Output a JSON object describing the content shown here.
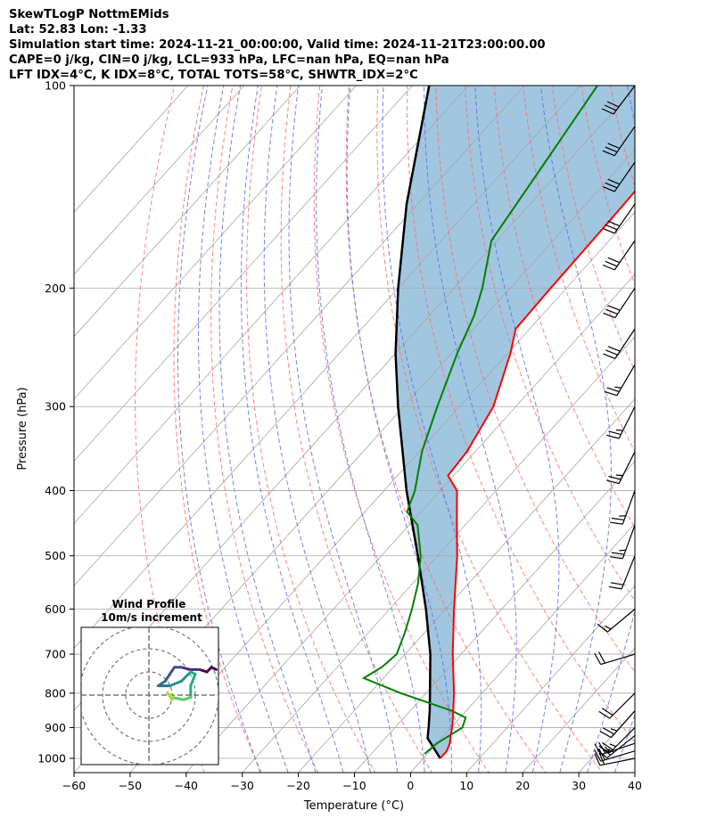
{
  "header": {
    "line1": "SkewTLogP NottmEMids",
    "line2": "Lat: 52.83   Lon: -1.33",
    "line3": "Simulation start time: 2024-11-21_00:00:00, Valid time: 2024-11-21T23:00:00.00",
    "line4": "CAPE=0 j/kg, CIN=0 j/kg, LCL=933 hPa, LFC=nan hPa, EQ=nan hPa",
    "line5": "LFT IDX=4°C, K IDX=8°C, TOTAL TOTS=58°C, SHWTR_IDX=2°C"
  },
  "chart_data": {
    "type": "skew-t",
    "xlabel": "Temperature (°C)",
    "ylabel": "Pressure (hPa)",
    "xlim": [
      -60,
      40
    ],
    "ylim": [
      1050,
      100
    ],
    "y_scale": "log",
    "grid": true,
    "x_ticks": [
      -60,
      -50,
      -40,
      -30,
      -20,
      -10,
      0,
      10,
      20,
      30,
      40
    ],
    "y_ticks": [
      1000,
      900,
      800,
      700,
      600,
      500,
      400,
      300,
      200,
      100
    ],
    "x_tick_labels": [
      "−60",
      "−50",
      "−40",
      "−30",
      "−20",
      "−10",
      "0",
      "10",
      "20",
      "30",
      "40"
    ],
    "y_tick_labels": [
      "1000",
      "900",
      "800",
      "700",
      "600",
      "500",
      "400",
      "300",
      "200",
      "100"
    ],
    "colors": {
      "temperature": "#ff0000",
      "dewpoint": "#008000",
      "parcel": "#000000",
      "shading": "#a1c6e0",
      "dry_adiabats": "#ff6b6b",
      "moist_adiabats": "#5a6cf0",
      "isotherms": "#a6a6a6"
    },
    "temperature": [
      {
        "p": 1000,
        "t": 3.0
      },
      {
        "p": 975,
        "t": 3.0
      },
      {
        "p": 950,
        "t": 2.3
      },
      {
        "p": 925,
        "t": 1.2
      },
      {
        "p": 900,
        "t": 0.2
      },
      {
        "p": 850,
        "t": -2.3
      },
      {
        "p": 800,
        "t": -5.0
      },
      {
        "p": 700,
        "t": -11.5
      },
      {
        "p": 600,
        "t": -18.5
      },
      {
        "p": 500,
        "t": -26.5
      },
      {
        "p": 450,
        "t": -31.5
      },
      {
        "p": 400,
        "t": -37.0
      },
      {
        "p": 380,
        "t": -41.0
      },
      {
        "p": 350,
        "t": -41.5
      },
      {
        "p": 300,
        "t": -44.0
      },
      {
        "p": 250,
        "t": -49.5
      },
      {
        "p": 230,
        "t": -52.5
      },
      {
        "p": 200,
        "t": -52.8
      },
      {
        "p": 170,
        "t": -53.0
      },
      {
        "p": 150,
        "t": -53.2
      },
      {
        "p": 120,
        "t": -53.8
      },
      {
        "p": 100,
        "t": -55.0
      }
    ],
    "dewpoint": [
      {
        "p": 985,
        "t": -0.5
      },
      {
        "p": 950,
        "t": 0.0
      },
      {
        "p": 900,
        "t": 2.0
      },
      {
        "p": 870,
        "t": 1.0
      },
      {
        "p": 850,
        "t": -2.5
      },
      {
        "p": 800,
        "t": -14.5
      },
      {
        "p": 760,
        "t": -23.5
      },
      {
        "p": 730,
        "t": -22.0
      },
      {
        "p": 700,
        "t": -21.5
      },
      {
        "p": 650,
        "t": -23.5
      },
      {
        "p": 600,
        "t": -26.0
      },
      {
        "p": 550,
        "t": -29.0
      },
      {
        "p": 500,
        "t": -33.0
      },
      {
        "p": 450,
        "t": -38.5
      },
      {
        "p": 430,
        "t": -42.5
      },
      {
        "p": 400,
        "t": -44.5
      },
      {
        "p": 350,
        "t": -49.5
      },
      {
        "p": 300,
        "t": -54.0
      },
      {
        "p": 250,
        "t": -59.0
      },
      {
        "p": 220,
        "t": -62.0
      },
      {
        "p": 200,
        "t": -65.0
      },
      {
        "p": 170,
        "t": -71.0
      },
      {
        "p": 130,
        "t": -74.0
      },
      {
        "p": 100,
        "t": -77.0
      }
    ],
    "parcel": [
      {
        "p": 1000,
        "t": 3.0
      },
      {
        "p": 933,
        "t": -2.5
      },
      {
        "p": 900,
        "t": -4.0
      },
      {
        "p": 850,
        "t": -6.5
      },
      {
        "p": 800,
        "t": -9.3
      },
      {
        "p": 700,
        "t": -15.5
      },
      {
        "p": 600,
        "t": -23.5
      },
      {
        "p": 500,
        "t": -33.5
      },
      {
        "p": 400,
        "t": -46.0
      },
      {
        "p": 300,
        "t": -61.0
      },
      {
        "p": 250,
        "t": -70.0
      },
      {
        "p": 200,
        "t": -80.0
      },
      {
        "p": 150,
        "t": -92.0
      },
      {
        "p": 100,
        "t": -107.0
      }
    ],
    "wind_barbs": [
      {
        "p": 1000,
        "u": 10.0,
        "v": 2.0
      },
      {
        "p": 975,
        "u": 10.0,
        "v": 3.0
      },
      {
        "p": 950,
        "u": 12.0,
        "v": 4.0
      },
      {
        "p": 925,
        "u": 10.0,
        "v": 8.0
      },
      {
        "p": 900,
        "u": 9.0,
        "v": 9.0
      },
      {
        "p": 850,
        "u": 8.0,
        "v": 9.0
      },
      {
        "p": 800,
        "u": 8.0,
        "v": 8.0
      },
      {
        "p": 700,
        "u": 10.0,
        "v": 3.0
      },
      {
        "p": 600,
        "u": 6.0,
        "v": 5.0
      },
      {
        "p": 500,
        "u": 4.0,
        "v": 10.0
      },
      {
        "p": 450,
        "u": 4.0,
        "v": 11.0
      },
      {
        "p": 400,
        "u": 4.0,
        "v": 11.0
      },
      {
        "p": 350,
        "u": 6.0,
        "v": 12.0
      },
      {
        "p": 300,
        "u": 6.0,
        "v": 12.0
      },
      {
        "p": 260,
        "u": 7.0,
        "v": 12.0
      },
      {
        "p": 230,
        "u": 8.0,
        "v": 12.0
      },
      {
        "p": 200,
        "u": 8.0,
        "v": 12.0
      },
      {
        "p": 170,
        "u": 9.0,
        "v": 13.0
      },
      {
        "p": 150,
        "u": 9.0,
        "v": 13.0
      },
      {
        "p": 130,
        "u": 9.0,
        "v": 13.0
      },
      {
        "p": 115,
        "u": 9.0,
        "v": 13.0
      },
      {
        "p": 100,
        "u": 9.0,
        "v": 12.0
      }
    ],
    "hodograph": {
      "title": "Wind Profile",
      "subtitle": "10m/s increment",
      "rings": [
        10,
        20,
        30
      ],
      "points": [
        {
          "u": 29,
          "v": -11
        },
        {
          "u": 27,
          "v": -12
        },
        {
          "u": 25,
          "v": -10
        },
        {
          "u": 22,
          "v": -11
        },
        {
          "u": 18,
          "v": -11
        },
        {
          "u": 14,
          "v": -12
        },
        {
          "u": 11,
          "v": -12
        },
        {
          "u": 9,
          "v": -9
        },
        {
          "u": 7,
          "v": -6
        },
        {
          "u": 4,
          "v": -4
        },
        {
          "u": 9,
          "v": -4
        },
        {
          "u": 14,
          "v": -6
        },
        {
          "u": 18,
          "v": -10
        },
        {
          "u": 20,
          "v": -9
        },
        {
          "u": 18,
          "v": -4
        },
        {
          "u": 18,
          "v": 1
        },
        {
          "u": 15,
          "v": 2
        },
        {
          "u": 10,
          "v": 1
        },
        {
          "u": 8,
          "v": -1
        },
        {
          "u": 10,
          "v": 2
        }
      ]
    }
  }
}
